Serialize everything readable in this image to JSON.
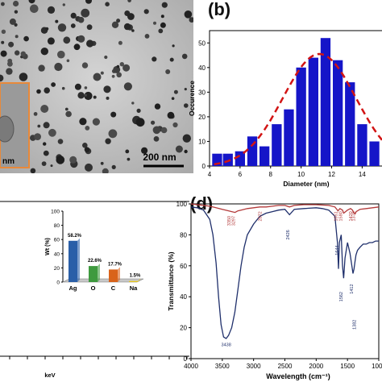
{
  "panels": {
    "b_label": "(b)",
    "d_label": "(d)"
  },
  "tem": {
    "scale_bar_main": "200 nm",
    "scale_bar_inset": "nm",
    "inset_border_color": "#e8893a"
  },
  "colors": {
    "hist_bar": "#1515c8",
    "fit_line": "#d21414",
    "ftir_blue": "#1f2f6b",
    "ftir_red": "#b33a3a",
    "ag_bar": "#2a5fa8",
    "o_bar": "#3e9a3e",
    "c_bar": "#d9631a",
    "na_bar": "#e6c619"
  },
  "chart_data": [
    {
      "panel": "b",
      "type": "bar",
      "xlabel": "Diameter (nm)",
      "ylabel": "Occurence",
      "x_ticks": [
        "4",
        "6",
        "8",
        "10",
        "12",
        "14"
      ],
      "y_ticks": [
        "0",
        "10",
        "20",
        "30",
        "40",
        "50"
      ],
      "xlim": [
        4,
        15.3
      ],
      "ylim": [
        0,
        55
      ],
      "bin_width": 0.7,
      "bin_centers": [
        4.5,
        5.2,
        6.0,
        6.8,
        7.6,
        8.4,
        9.2,
        10.0,
        10.8,
        11.6,
        12.4,
        13.2,
        14.0,
        14.8
      ],
      "values": [
        5,
        5,
        6,
        12,
        8,
        17,
        23,
        40,
        44,
        52,
        43,
        34,
        17,
        10
      ],
      "fit_curve": {
        "style": "dashed",
        "mean": 11.2,
        "sigma": 2.4,
        "peak": 45.5
      }
    },
    {
      "panel": "c-inset",
      "type": "bar",
      "ylabel": "Wt (%)",
      "categories": [
        "Ag",
        "O",
        "C",
        "Na"
      ],
      "values": [
        58.2,
        22.6,
        17.7,
        1.5
      ],
      "data_labels": [
        "58.2%",
        "22.6%",
        "17.7%",
        "1.5%"
      ],
      "y_ticks": [
        "0",
        "20",
        "40",
        "60",
        "80",
        "100"
      ],
      "ylim": [
        0,
        100
      ]
    },
    {
      "panel": "c",
      "type": "line",
      "xlabel": "keV"
    },
    {
      "panel": "d",
      "type": "line",
      "xlabel": "Wavelength (cm⁻¹)",
      "ylabel": "Transmittance (%)",
      "x_ticks": [
        "4000",
        "3500",
        "3000",
        "2500",
        "2000",
        "1500",
        "1000"
      ],
      "y_ticks": [
        "0",
        "20",
        "40",
        "60",
        "80",
        "100"
      ],
      "xlim": [
        4000,
        1000
      ],
      "ylim": [
        0,
        100
      ],
      "series": [
        {
          "color": "blue",
          "x": [
            4000,
            3900,
            3800,
            3700,
            3650,
            3600,
            3560,
            3520,
            3480,
            3438,
            3400,
            3350,
            3300,
            3250,
            3200,
            3150,
            3100,
            3000,
            2900,
            2800,
            2700,
            2600,
            2500,
            2426,
            2350,
            2200,
            2000,
            1900,
            1800,
            1700,
            1660,
            1644,
            1630,
            1600,
            1580,
            1562,
            1540,
            1500,
            1460,
            1430,
            1412,
            1395,
            1382,
            1365,
            1340,
            1300,
            1250,
            1200,
            1150,
            1100,
            1050,
            1000
          ],
          "y": [
            98,
            97.5,
            96,
            90,
            80,
            62,
            40,
            22,
            14,
            13,
            15,
            20,
            30,
            45,
            60,
            72,
            80,
            87,
            92,
            94,
            95,
            96,
            96.5,
            93,
            96.5,
            97,
            97.5,
            97,
            96,
            92,
            75,
            58,
            75,
            80,
            60,
            52,
            65,
            75,
            68,
            60,
            55,
            58,
            62,
            67,
            70,
            72,
            74,
            74,
            75,
            75,
            76,
            76
          ]
        },
        {
          "color": "red",
          "x": [
            4000,
            3900,
            3800,
            3700,
            3600,
            3500,
            3400,
            3350,
            3297,
            3250,
            3200,
            3100,
            3000,
            2900,
            2800,
            2700,
            2600,
            2500,
            2426,
            2350,
            2200,
            2000,
            1800,
            1700,
            1651,
            1620,
            1580,
            1560,
            1500,
            1450,
            1420,
            1395,
            1378,
            1360,
            1300,
            1200,
            1100,
            1000
          ],
          "y": [
            100,
            99.5,
            99,
            98.5,
            97.5,
            96.5,
            95.5,
            95,
            94.5,
            95.5,
            96,
            97,
            97.5,
            98,
            98,
            98.5,
            99,
            99,
            98,
            99,
            99.5,
            99.5,
            99,
            98,
            95.5,
            97,
            96,
            94,
            96,
            97,
            96,
            94,
            93.5,
            95,
            96.5,
            97,
            97.5,
            98
          ]
        }
      ],
      "annotations": [
        {
          "text": "3438",
          "color": "blue"
        },
        {
          "text": "2426",
          "color": "blue"
        },
        {
          "text": "1644",
          "color": "blue"
        },
        {
          "text": "1562",
          "color": "blue"
        },
        {
          "text": "1412",
          "color": "blue"
        },
        {
          "text": "1382",
          "color": "blue"
        },
        {
          "text": "3350",
          "color": "red"
        },
        {
          "text": "3297",
          "color": "red"
        },
        {
          "text": "2872",
          "color": "red"
        },
        {
          "text": "1651",
          "color": "red"
        },
        {
          "text": "1580",
          "color": "red"
        },
        {
          "text": "1420",
          "color": "red"
        },
        {
          "text": "1378",
          "color": "red"
        }
      ]
    }
  ]
}
